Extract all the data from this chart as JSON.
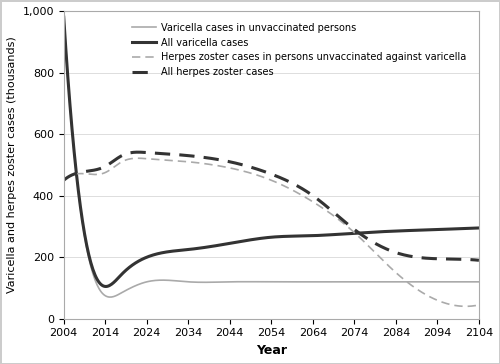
{
  "title": "",
  "xlabel": "Year",
  "ylabel": "Varicella and herpes zoster cases (thousands)",
  "xlim": [
    2004,
    2104
  ],
  "ylim": [
    0,
    1000
  ],
  "xticks": [
    2004,
    2014,
    2024,
    2034,
    2044,
    2054,
    2064,
    2074,
    2084,
    2094,
    2104
  ],
  "yticks": [
    0,
    200,
    400,
    600,
    800,
    1000
  ],
  "ytick_labels": [
    "0",
    "200",
    "400",
    "600",
    "800",
    "1,000"
  ],
  "series": {
    "varicella_unvax": {
      "label": "Varicella cases in unvaccinated persons",
      "color": "#aaaaaa",
      "linestyle": "solid",
      "linewidth": 1.2,
      "x": [
        2004,
        2010,
        2014,
        2018,
        2024,
        2034,
        2044,
        2054,
        2064,
        2074,
        2084,
        2094,
        2104
      ],
      "y": [
        980,
        200,
        75,
        85,
        120,
        120,
        120,
        120,
        120,
        120,
        120,
        120,
        120
      ]
    },
    "all_varicella": {
      "label": "All varicella cases",
      "color": "#333333",
      "linestyle": "solid",
      "linewidth": 2.2,
      "x": [
        2004,
        2010,
        2014,
        2018,
        2024,
        2034,
        2044,
        2054,
        2064,
        2074,
        2084,
        2094,
        2104
      ],
      "y": [
        980,
        210,
        105,
        145,
        200,
        225,
        245,
        265,
        270,
        278,
        285,
        290,
        295
      ]
    },
    "hz_unvax": {
      "label": "Herpes zoster cases in persons unvaccinated against varicella",
      "color": "#aaaaaa",
      "linestyle": "dashed",
      "linewidth": 1.2,
      "x": [
        2004,
        2010,
        2014,
        2018,
        2024,
        2034,
        2044,
        2054,
        2064,
        2074,
        2084,
        2094,
        2104
      ],
      "y": [
        450,
        470,
        475,
        510,
        520,
        510,
        490,
        450,
        380,
        280,
        150,
        60,
        45
      ]
    },
    "all_hz": {
      "label": "All herpes zoster cases",
      "color": "#333333",
      "linestyle": "dashed",
      "linewidth": 2.2,
      "x": [
        2004,
        2010,
        2014,
        2018,
        2024,
        2034,
        2044,
        2054,
        2064,
        2074,
        2084,
        2094,
        2104
      ],
      "y": [
        450,
        480,
        495,
        530,
        540,
        530,
        510,
        470,
        400,
        290,
        215,
        195,
        190
      ]
    }
  },
  "legend_order": [
    "varicella_unvax",
    "all_varicella",
    "hz_unvax",
    "all_hz"
  ],
  "background_color": "#ffffff",
  "figure_edge_color": "#cccccc"
}
